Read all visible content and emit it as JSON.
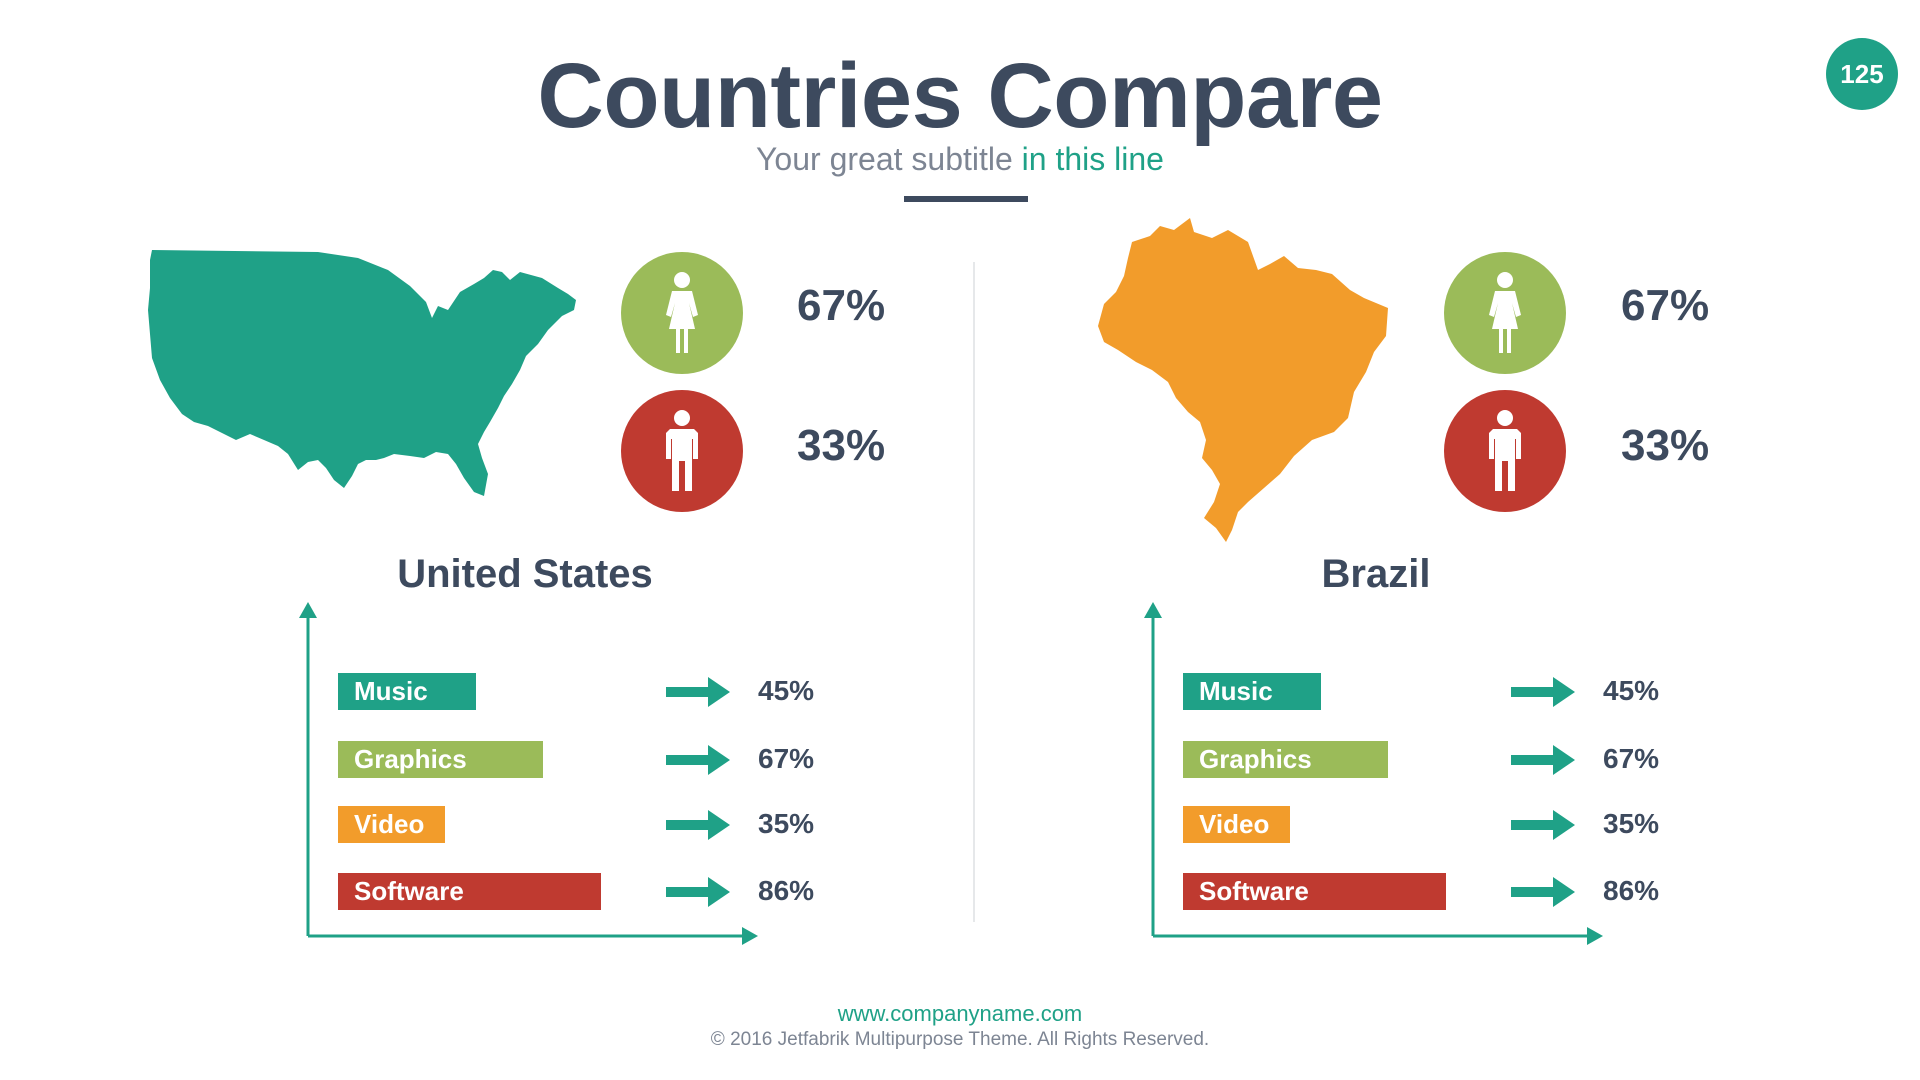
{
  "slide": {
    "title": "Countries Compare",
    "subtitle_main": "Your great subtitle",
    "subtitle_accent": "in this line",
    "page_number": "125"
  },
  "footer": {
    "url": "www.companyname.com",
    "copyright": "© 2016 Jetfabrik Multipurpose Theme. All Rights Reserved."
  },
  "colors": {
    "dark": "#3d4a5e",
    "teal": "#1fa187",
    "green": "#9bbb59",
    "orange": "#f29c2b",
    "red": "#bf3a30"
  },
  "countries": [
    {
      "name": "United States",
      "map_color": "#1fa187",
      "female_icon": "female-person-icon",
      "male_icon": "male-person-icon",
      "female_pct": "67%",
      "male_pct": "33%"
    },
    {
      "name": "Brazil",
      "map_color": "#f29c2b",
      "female_icon": "female-person-icon",
      "male_icon": "male-person-icon",
      "female_pct": "67%",
      "male_pct": "33%"
    }
  ],
  "chart_data": [
    {
      "type": "bar",
      "orientation": "horizontal",
      "categories": [
        "Music",
        "Graphics",
        "Video",
        "Software"
      ],
      "values": [
        45,
        67,
        35,
        86
      ],
      "value_labels": [
        "45%",
        "67%",
        "35%",
        "86%"
      ],
      "bar_colors": [
        "#1fa187",
        "#9bbb59",
        "#f29c2b",
        "#bf3a30"
      ],
      "title": "United States"
    },
    {
      "type": "bar",
      "orientation": "horizontal",
      "categories": [
        "Music",
        "Graphics",
        "Video",
        "Software"
      ],
      "values": [
        45,
        67,
        35,
        86
      ],
      "value_labels": [
        "45%",
        "67%",
        "35%",
        "86%"
      ],
      "bar_colors": [
        "#1fa187",
        "#9bbb59",
        "#f29c2b",
        "#bf3a30"
      ],
      "title": "Brazil"
    }
  ]
}
